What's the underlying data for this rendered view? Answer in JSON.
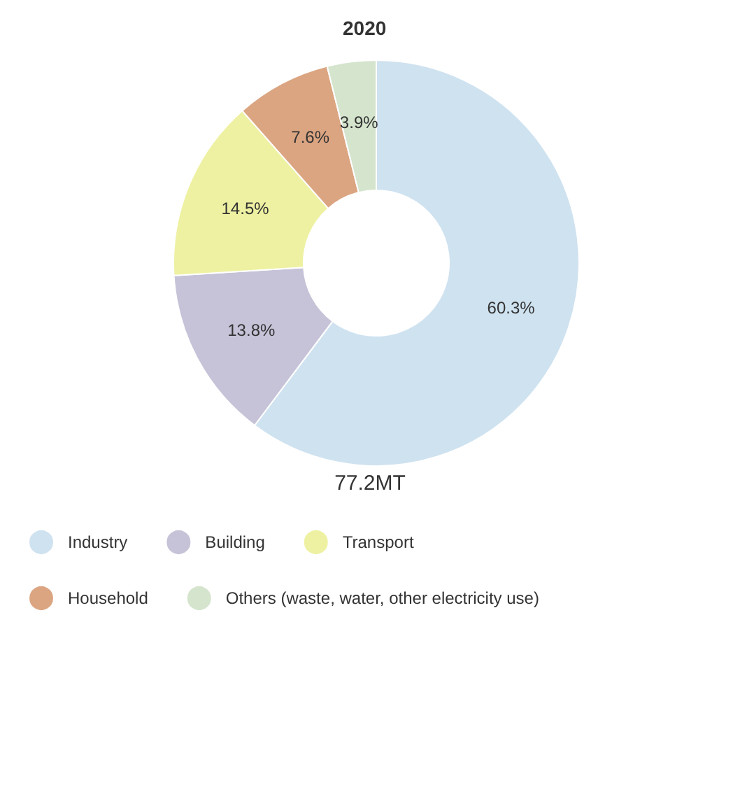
{
  "chart_data": {
    "type": "donut",
    "title": "2020",
    "categories": [
      "Industry",
      "Building",
      "Transport",
      "Household",
      "Others (waste, water, other electricity use)"
    ],
    "values": [
      60.3,
      13.8,
      14.5,
      7.6,
      3.9
    ],
    "value_labels": [
      "60.3%",
      "13.8%",
      "14.5%",
      "7.6%",
      "3.9%"
    ],
    "colors": [
      "#cfe2f0",
      "#c6c3d8",
      "#eef1a2",
      "#dba582",
      "#d5e4cd"
    ],
    "annotations": [
      "77.2MT"
    ],
    "legend": "bottom"
  }
}
